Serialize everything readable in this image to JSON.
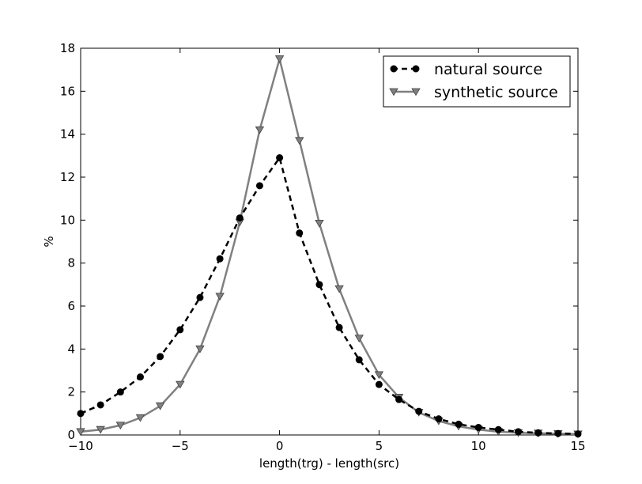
{
  "chart_data": {
    "type": "line",
    "title": "",
    "xlabel": "length(trg) - length(src)",
    "ylabel": "%",
    "xlim": [
      -10,
      15
    ],
    "ylim": [
      0,
      18
    ],
    "xticks": [
      -10,
      -5,
      0,
      5,
      10,
      15
    ],
    "yticks": [
      0,
      2,
      4,
      6,
      8,
      10,
      12,
      14,
      16,
      18
    ],
    "xtick_labels": [
      "−10",
      "−5",
      "0",
      "5",
      "10",
      "15"
    ],
    "ytick_labels": [
      "0",
      "2",
      "4",
      "6",
      "8",
      "10",
      "12",
      "14",
      "16",
      "18"
    ],
    "grid": false,
    "legend_position": "top-right",
    "x": [
      -10,
      -9,
      -8,
      -7,
      -6,
      -5,
      -4,
      -3,
      -2,
      -1,
      0,
      1,
      2,
      3,
      4,
      5,
      6,
      7,
      8,
      9,
      10,
      11,
      12,
      13,
      14,
      15
    ],
    "series": [
      {
        "name": "natural source",
        "color": "#000000",
        "line_style": "dashed",
        "marker": "circle",
        "values": [
          1.0,
          1.4,
          2.0,
          2.7,
          3.65,
          4.9,
          6.4,
          8.2,
          10.1,
          11.6,
          12.9,
          9.4,
          7.0,
          5.0,
          3.5,
          2.35,
          1.65,
          1.1,
          0.75,
          0.5,
          0.35,
          0.25,
          0.15,
          0.1,
          0.07,
          0.05
        ]
      },
      {
        "name": "synthetic source",
        "color": "#808080",
        "line_style": "solid",
        "marker": "triangle-down",
        "values": [
          0.15,
          0.25,
          0.45,
          0.8,
          1.35,
          2.35,
          4.0,
          6.45,
          9.9,
          14.2,
          17.5,
          13.7,
          9.85,
          6.8,
          4.5,
          2.8,
          1.75,
          1.05,
          0.65,
          0.4,
          0.25,
          0.15,
          0.1,
          0.08,
          0.06,
          0.04
        ]
      }
    ]
  }
}
